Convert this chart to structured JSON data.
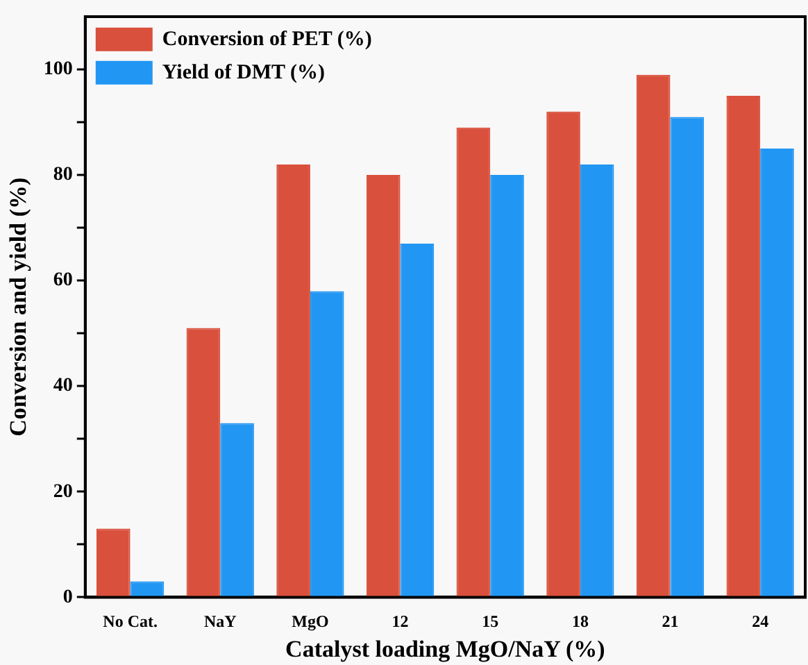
{
  "chart_data": {
    "type": "bar",
    "xlabel": "Catalyst loading MgO/NaY (%)",
    "ylabel": "Conversion and yield (%)",
    "categories": [
      "No Cat.",
      "NaY",
      "MgO",
      "12",
      "15",
      "18",
      "21",
      "24"
    ],
    "series": [
      {
        "name": "Conversion of PET (%)",
        "color": "#d9503c",
        "values": [
          13,
          51,
          82,
          80,
          89,
          92,
          99,
          95
        ]
      },
      {
        "name": "Yield of DMT (%)",
        "color": "#2196f3",
        "values": [
          3,
          33,
          58,
          67,
          80,
          82,
          91,
          85
        ]
      }
    ],
    "ylim": [
      0,
      110
    ],
    "yticks": [
      0,
      {
        "value": 10,
        "label": null
      },
      20,
      {
        "value": 30,
        "label": null
      },
      40,
      {
        "value": 50,
        "label": null
      },
      60,
      {
        "value": 70,
        "label": null
      },
      80,
      {
        "value": 90,
        "label": null
      },
      100
    ],
    "legend": "top left",
    "grid": false
  }
}
